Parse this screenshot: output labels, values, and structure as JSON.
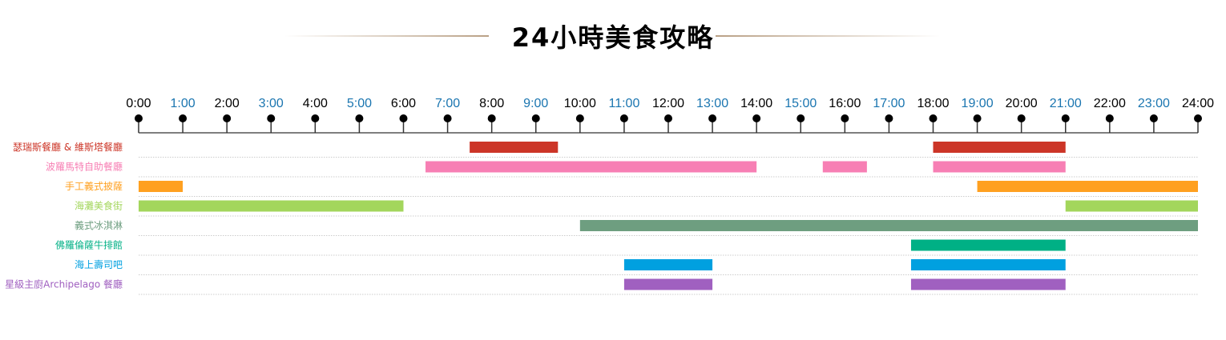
{
  "chart_data": {
    "type": "gantt",
    "title": "24小時美食攻略",
    "x_ticks": [
      "0:00",
      "1:00",
      "2:00",
      "3:00",
      "4:00",
      "5:00",
      "6:00",
      "7:00",
      "8:00",
      "9:00",
      "10:00",
      "11:00",
      "12:00",
      "13:00",
      "14:00",
      "15:00",
      "16:00",
      "17:00",
      "18:00",
      "19:00",
      "20:00",
      "21:00",
      "22:00",
      "23:00",
      "24:00"
    ],
    "xlim": [
      0,
      24
    ],
    "tick_colors": {
      "even": "#000000",
      "odd": "#1a75b0"
    },
    "series": [
      {
        "name": "瑟瑞斯餐廳 & 維斯塔餐廳",
        "color": "#cc3527",
        "intervals": [
          [
            7.5,
            9.5
          ],
          [
            18,
            21
          ]
        ]
      },
      {
        "name": "波羅馬特自助餐廳",
        "color": "#f77fb4",
        "intervals": [
          [
            6.5,
            14
          ],
          [
            15.5,
            16.5
          ],
          [
            18,
            21
          ]
        ]
      },
      {
        "name": "手工義式披薩",
        "color": "#ffa020",
        "intervals": [
          [
            0,
            1
          ],
          [
            19,
            24
          ]
        ]
      },
      {
        "name": "海灘美食街",
        "color": "#a3d65c",
        "intervals": [
          [
            0,
            6
          ],
          [
            21,
            24
          ]
        ]
      },
      {
        "name": "義式冰淇淋",
        "color": "#6e9e80",
        "intervals": [
          [
            10,
            24
          ]
        ]
      },
      {
        "name": "佛羅倫薩牛排館",
        "color": "#00b085",
        "intervals": [
          [
            17.5,
            21
          ]
        ]
      },
      {
        "name": "海上壽司吧",
        "color": "#00a0e0",
        "intervals": [
          [
            11,
            13
          ],
          [
            17.5,
            21
          ]
        ]
      },
      {
        "name": "星級主廚Archipelago 餐廳",
        "color": "#a060c0",
        "intervals": [
          [
            11,
            13
          ],
          [
            17.5,
            21
          ]
        ]
      }
    ]
  }
}
